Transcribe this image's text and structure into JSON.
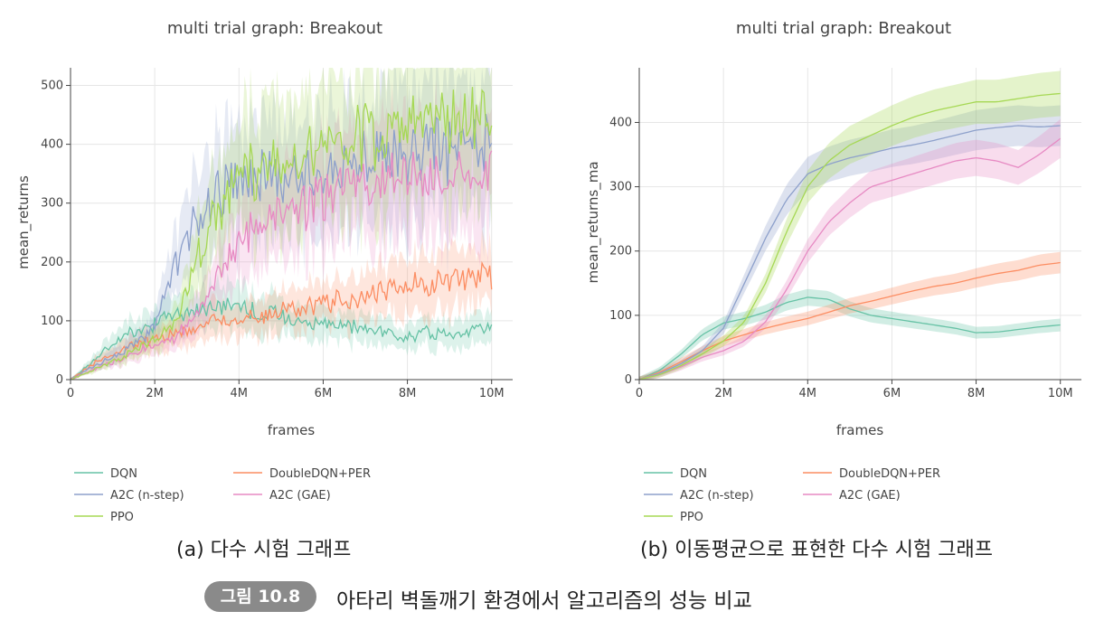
{
  "chart_data": [
    {
      "id": "raw",
      "type": "line",
      "title": "multi trial graph: Breakout",
      "xlabel": "frames",
      "ylabel": "mean_returns",
      "xlim": [
        0,
        10500000
      ],
      "ylim": [
        0,
        530
      ],
      "xticks": [
        0,
        2000000,
        4000000,
        6000000,
        8000000,
        10000000
      ],
      "xtick_labels": [
        "0",
        "2M",
        "4M",
        "6M",
        "8M",
        "10M"
      ],
      "yticks": [
        0,
        100,
        200,
        300,
        400,
        500
      ],
      "ytick_labels": [
        "0",
        "100",
        "200",
        "300",
        "400",
        "500"
      ],
      "grid": true,
      "noisy": true,
      "legend_position": "bottom",
      "series": [
        {
          "name": "DQN",
          "color": "#66c2a5",
          "x": [
            0,
            500000,
            1000000,
            1500000,
            2000000,
            2500000,
            3000000,
            3500000,
            4000000,
            4500000,
            5000000,
            5500000,
            6000000,
            6500000,
            7000000,
            7500000,
            8000000,
            8500000,
            9000000,
            9500000,
            10000000
          ],
          "values": [
            0,
            30,
            60,
            85,
            95,
            110,
            120,
            125,
            130,
            110,
            110,
            100,
            95,
            90,
            85,
            80,
            75,
            80,
            80,
            85,
            90
          ]
        },
        {
          "name": "DoubleDQN+PER",
          "color": "#fc8d62",
          "x": [
            0,
            500000,
            1000000,
            1500000,
            2000000,
            2500000,
            3000000,
            3500000,
            4000000,
            4500000,
            5000000,
            5500000,
            6000000,
            6500000,
            7000000,
            7500000,
            8000000,
            8500000,
            9000000,
            9500000,
            10000000
          ],
          "values": [
            0,
            25,
            45,
            60,
            70,
            80,
            90,
            100,
            105,
            110,
            115,
            120,
            130,
            135,
            145,
            150,
            160,
            165,
            170,
            180,
            180
          ]
        },
        {
          "name": "A2C (n-step)",
          "color": "#8da0cb",
          "x": [
            0,
            500000,
            1000000,
            1500000,
            2000000,
            2500000,
            3000000,
            3500000,
            4000000,
            4500000,
            5000000,
            5500000,
            6000000,
            6500000,
            7000000,
            7500000,
            8000000,
            8500000,
            9000000,
            9500000,
            10000000
          ],
          "values": [
            0,
            20,
            40,
            60,
            90,
            200,
            280,
            320,
            330,
            340,
            350,
            355,
            360,
            365,
            370,
            375,
            385,
            390,
            395,
            395,
            400
          ]
        },
        {
          "name": "A2C (GAE)",
          "color": "#e78ac3",
          "x": [
            0,
            500000,
            1000000,
            1500000,
            2000000,
            2500000,
            3000000,
            3500000,
            4000000,
            4500000,
            5000000,
            5500000,
            6000000,
            6500000,
            7000000,
            7500000,
            8000000,
            8500000,
            9000000,
            9500000,
            10000000
          ],
          "values": [
            0,
            15,
            30,
            45,
            60,
            70,
            110,
            180,
            230,
            270,
            290,
            300,
            310,
            320,
            330,
            340,
            350,
            345,
            340,
            360,
            375
          ]
        },
        {
          "name": "PPO",
          "color": "#a6d854",
          "x": [
            0,
            500000,
            1000000,
            1500000,
            2000000,
            2500000,
            3000000,
            3500000,
            4000000,
            4500000,
            5000000,
            5500000,
            6000000,
            6500000,
            7000000,
            7500000,
            8000000,
            8500000,
            9000000,
            9500000,
            10000000
          ],
          "values": [
            0,
            15,
            30,
            50,
            70,
            100,
            200,
            290,
            340,
            360,
            380,
            390,
            400,
            410,
            420,
            425,
            430,
            432,
            435,
            440,
            445
          ]
        }
      ]
    },
    {
      "id": "ma",
      "type": "line",
      "title": "multi trial graph: Breakout",
      "xlabel": "frames",
      "ylabel": "mean_returns_ma",
      "xlim": [
        0,
        10500000
      ],
      "ylim": [
        0,
        485
      ],
      "xticks": [
        0,
        2000000,
        4000000,
        6000000,
        8000000,
        10000000
      ],
      "xtick_labels": [
        "0",
        "2M",
        "4M",
        "6M",
        "8M",
        "10M"
      ],
      "yticks": [
        0,
        100,
        200,
        300,
        400
      ],
      "ytick_labels": [
        "0",
        "100",
        "200",
        "300",
        "400"
      ],
      "grid": true,
      "noisy": false,
      "legend_position": "bottom",
      "series": [
        {
          "name": "DQN",
          "color": "#66c2a5",
          "x": [
            0,
            500000,
            1000000,
            1500000,
            2000000,
            2500000,
            3000000,
            3500000,
            4000000,
            4500000,
            5000000,
            5500000,
            6000000,
            6500000,
            7000000,
            7500000,
            8000000,
            8500000,
            9000000,
            9500000,
            10000000
          ],
          "values": [
            0,
            15,
            40,
            70,
            88,
            95,
            105,
            120,
            128,
            125,
            110,
            100,
            95,
            90,
            85,
            80,
            73,
            74,
            78,
            82,
            85
          ]
        },
        {
          "name": "DoubleDQN+PER",
          "color": "#fc8d62",
          "x": [
            0,
            500000,
            1000000,
            1500000,
            2000000,
            2500000,
            3000000,
            3500000,
            4000000,
            4500000,
            5000000,
            5500000,
            6000000,
            6500000,
            7000000,
            7500000,
            8000000,
            8500000,
            9000000,
            9500000,
            10000000
          ],
          "values": [
            0,
            12,
            28,
            45,
            60,
            70,
            80,
            88,
            95,
            105,
            115,
            122,
            130,
            138,
            145,
            150,
            158,
            165,
            170,
            178,
            182
          ]
        },
        {
          "name": "A2C (n-step)",
          "color": "#8da0cb",
          "x": [
            0,
            500000,
            1000000,
            1500000,
            2000000,
            2500000,
            3000000,
            3500000,
            4000000,
            4500000,
            5000000,
            5500000,
            6000000,
            6500000,
            7000000,
            7500000,
            8000000,
            8500000,
            9000000,
            9500000,
            10000000
          ],
          "values": [
            0,
            10,
            25,
            45,
            80,
            150,
            220,
            280,
            320,
            335,
            345,
            352,
            360,
            365,
            372,
            380,
            388,
            392,
            395,
            393,
            395
          ]
        },
        {
          "name": "A2C (GAE)",
          "color": "#e78ac3",
          "x": [
            0,
            500000,
            1000000,
            1500000,
            2000000,
            2500000,
            3000000,
            3500000,
            4000000,
            4500000,
            5000000,
            5500000,
            6000000,
            6500000,
            7000000,
            7500000,
            8000000,
            8500000,
            9000000,
            9500000,
            10000000
          ],
          "values": [
            0,
            8,
            20,
            35,
            45,
            60,
            90,
            140,
            200,
            245,
            275,
            300,
            310,
            320,
            330,
            340,
            345,
            340,
            330,
            350,
            375
          ]
        },
        {
          "name": "PPO",
          "color": "#a6d854",
          "x": [
            0,
            500000,
            1000000,
            1500000,
            2000000,
            2500000,
            3000000,
            3500000,
            4000000,
            4500000,
            5000000,
            5500000,
            6000000,
            6500000,
            7000000,
            7500000,
            8000000,
            8500000,
            9000000,
            9500000,
            10000000
          ],
          "values": [
            0,
            8,
            22,
            40,
            60,
            90,
            150,
            230,
            300,
            340,
            365,
            380,
            395,
            408,
            418,
            425,
            432,
            432,
            437,
            442,
            445
          ]
        }
      ]
    }
  ],
  "captions": {
    "a": "(a) 다수 시험 그래프",
    "b": "(b) 이동평균으로 표현한 다수 시험 그래프"
  },
  "figure": {
    "badge": "그림 10.8",
    "caption": "아타리 벽돌깨기 환경에서 알고리즘의 성능 비교"
  }
}
